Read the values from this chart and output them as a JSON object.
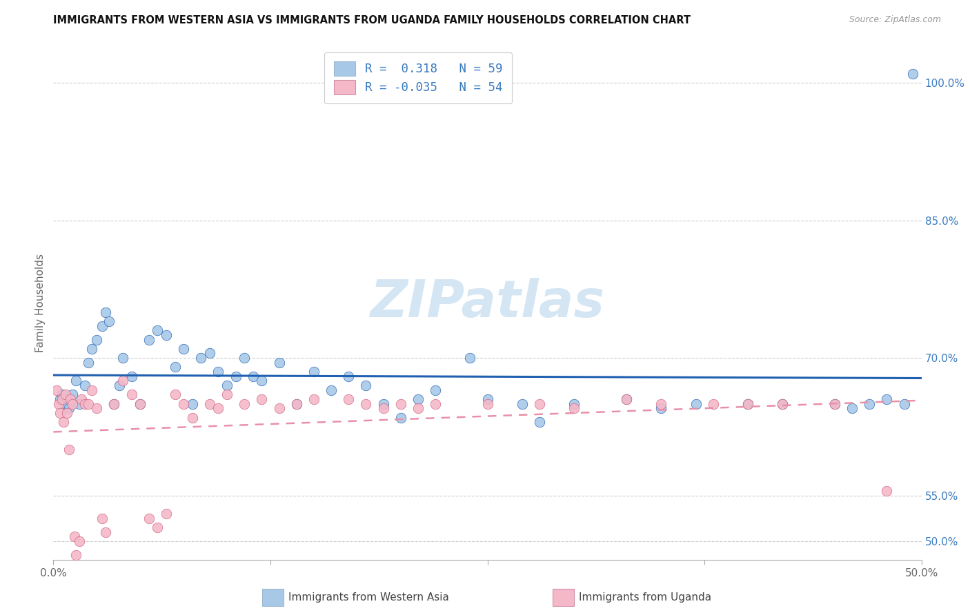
{
  "title": "IMMIGRANTS FROM WESTERN ASIA VS IMMIGRANTS FROM UGANDA FAMILY HOUSEHOLDS CORRELATION CHART",
  "source": "Source: ZipAtlas.com",
  "ylabel": "Family Households",
  "legend_blue_R": "0.318",
  "legend_blue_N": "59",
  "legend_pink_R": "-0.035",
  "legend_pink_N": "54",
  "legend_blue_label": "Immigrants from Western Asia",
  "legend_pink_label": "Immigrants from Uganda",
  "watermark": "ZIPatlas",
  "blue_color": "#a8c8e8",
  "pink_color": "#f4b8c8",
  "blue_line_color": "#2060b0",
  "pink_line_color": "#e890a8",
  "background_color": "#ffffff",
  "xlim": [
    0,
    50
  ],
  "ylim": [
    48,
    104
  ],
  "x_ticks": [
    0,
    12.5,
    25,
    37.5,
    50
  ],
  "x_tick_labels": [
    "0.0%",
    "",
    "",
    "",
    "50.0%"
  ],
  "y_right_ticks": [
    50,
    55,
    70,
    85,
    100
  ],
  "y_right_labels": [
    "50.0%",
    "55.0%",
    "70.0%",
    "85.0%",
    "100.0%"
  ],
  "grid_lines": [
    100,
    85,
    70,
    55,
    50
  ],
  "x_blue": [
    0.4,
    0.5,
    0.7,
    0.9,
    1.1,
    1.3,
    1.5,
    1.8,
    2.0,
    2.2,
    2.5,
    2.8,
    3.0,
    3.2,
    3.5,
    3.8,
    4.0,
    4.5,
    5.0,
    5.5,
    6.0,
    6.5,
    7.0,
    7.5,
    8.0,
    8.5,
    9.0,
    9.5,
    10.0,
    10.5,
    11.0,
    11.5,
    12.0,
    13.0,
    14.0,
    15.0,
    16.0,
    17.0,
    18.0,
    19.0,
    20.0,
    21.0,
    22.0,
    24.0,
    25.0,
    27.0,
    28.0,
    30.0,
    33.0,
    35.0,
    37.0,
    40.0,
    42.0,
    45.0,
    46.0,
    47.0,
    48.0,
    49.0,
    49.5
  ],
  "y_blue": [
    65.5,
    66.0,
    65.0,
    64.5,
    66.0,
    67.5,
    65.0,
    67.0,
    69.5,
    71.0,
    72.0,
    73.5,
    75.0,
    74.0,
    65.0,
    67.0,
    70.0,
    68.0,
    65.0,
    72.0,
    73.0,
    72.5,
    69.0,
    71.0,
    65.0,
    70.0,
    70.5,
    68.5,
    67.0,
    68.0,
    70.0,
    68.0,
    67.5,
    69.5,
    65.0,
    68.5,
    66.5,
    68.0,
    67.0,
    65.0,
    63.5,
    65.5,
    66.5,
    70.0,
    65.5,
    65.0,
    63.0,
    65.0,
    65.5,
    64.5,
    65.0,
    65.0,
    65.0,
    65.0,
    64.5,
    65.0,
    65.5,
    65.0,
    101.0
  ],
  "x_pink": [
    0.2,
    0.3,
    0.4,
    0.5,
    0.6,
    0.7,
    0.8,
    0.9,
    1.0,
    1.1,
    1.2,
    1.3,
    1.5,
    1.6,
    1.8,
    2.0,
    2.2,
    2.5,
    2.8,
    3.0,
    3.5,
    4.0,
    4.5,
    5.0,
    5.5,
    6.0,
    6.5,
    7.0,
    7.5,
    8.0,
    9.0,
    9.5,
    10.0,
    11.0,
    12.0,
    13.0,
    14.0,
    15.0,
    17.0,
    18.0,
    19.0,
    20.0,
    21.0,
    22.0,
    25.0,
    28.0,
    30.0,
    33.0,
    35.0,
    38.0,
    40.0,
    42.0,
    45.0,
    48.0
  ],
  "y_pink": [
    66.5,
    65.0,
    64.0,
    65.5,
    63.0,
    66.0,
    64.0,
    60.0,
    65.5,
    65.0,
    50.5,
    48.5,
    50.0,
    65.5,
    65.0,
    65.0,
    66.5,
    64.5,
    52.5,
    51.0,
    65.0,
    67.5,
    66.0,
    65.0,
    52.5,
    51.5,
    53.0,
    66.0,
    65.0,
    63.5,
    65.0,
    64.5,
    66.0,
    65.0,
    65.5,
    64.5,
    65.0,
    65.5,
    65.5,
    65.0,
    64.5,
    65.0,
    64.5,
    65.0,
    65.0,
    65.0,
    64.5,
    65.5,
    65.0,
    65.0,
    65.0,
    65.0,
    65.0,
    55.5
  ]
}
